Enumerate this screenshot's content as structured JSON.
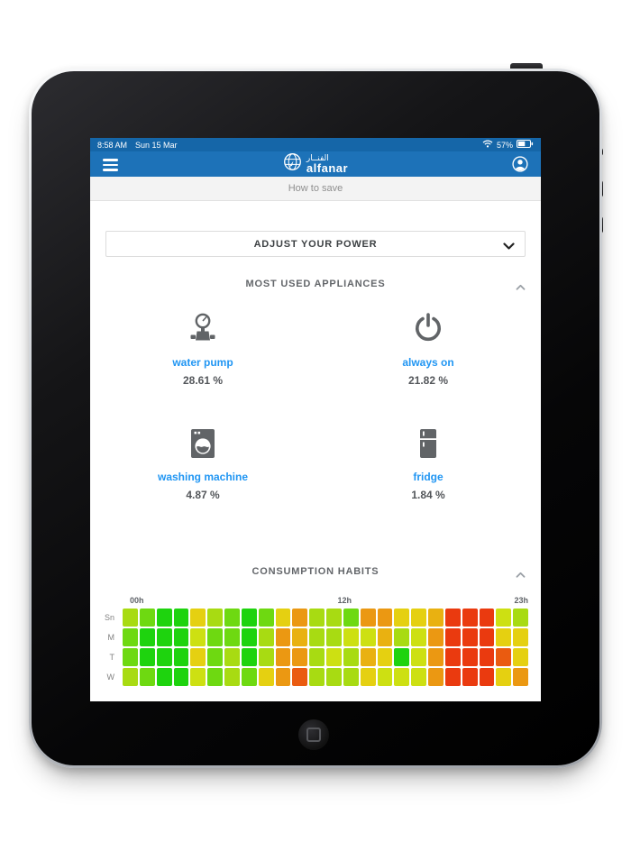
{
  "status_bar": {
    "time": "8:58 AM",
    "date": "Sun 15 Mar",
    "battery": "57%"
  },
  "header": {
    "logo_arabic": "الفنــار",
    "logo_latin": "alfanar"
  },
  "subheader": {
    "title": "How to save"
  },
  "adjust_power": {
    "label": "ADJUST YOUR POWER"
  },
  "sections": {
    "appliances": {
      "title": "MOST USED APPLIANCES",
      "items": [
        {
          "icon": "water-pump-icon",
          "name": "water pump",
          "value": "28.61 %"
        },
        {
          "icon": "power-icon",
          "name": "always on",
          "value": "21.82 %"
        },
        {
          "icon": "washing-machine-icon",
          "name": "washing machine",
          "value": "4.87 %"
        },
        {
          "icon": "fridge-icon",
          "name": "fridge",
          "value": "1.84 %"
        }
      ]
    },
    "habits": {
      "title": "CONSUMPTION HABITS"
    }
  },
  "chart_data": {
    "type": "heatmap",
    "title": "CONSUMPTION HABITS",
    "x_tick_labels": [
      "00h",
      "12h",
      "23h"
    ],
    "hours": 24,
    "rows": [
      "Sn",
      "M",
      "T",
      "W"
    ],
    "palette": {
      "G": "#1ed30e",
      "G2": "#6ed911",
      "YG": "#a8db12",
      "YG2": "#cde012",
      "Y": "#e5d011",
      "OY": "#e9b111",
      "O": "#eb9812",
      "RO": "#ea5b10",
      "R": "#ea3a0f"
    },
    "cells": {
      "Sn": [
        "YG",
        "G2",
        "G",
        "G",
        "Y",
        "YG",
        "G2",
        "G",
        "G2",
        "Y",
        "O",
        "YG",
        "YG",
        "G2",
        "O",
        "O",
        "Y",
        "Y",
        "OY",
        "R",
        "R",
        "R",
        "YG2",
        "YG"
      ],
      "M": [
        "G2",
        "G",
        "G",
        "G",
        "YG2",
        "G2",
        "G2",
        "G",
        "YG",
        "O",
        "OY",
        "YG",
        "YG",
        "YG2",
        "YG2",
        "OY",
        "YG",
        "YG2",
        "O",
        "R",
        "R",
        "R",
        "Y",
        "Y"
      ],
      "T": [
        "G2",
        "G",
        "G",
        "G",
        "Y",
        "G2",
        "YG",
        "G",
        "YG",
        "O",
        "O",
        "YG",
        "YG2",
        "YG",
        "OY",
        "Y",
        "G",
        "YG2",
        "O",
        "R",
        "R",
        "R",
        "RO",
        "Y"
      ],
      "W": [
        "YG",
        "G2",
        "G",
        "G",
        "YG2",
        "G2",
        "YG",
        "G2",
        "Y",
        "O",
        "RO",
        "YG",
        "YG",
        "YG",
        "Y",
        "YG2",
        "YG2",
        "YG2",
        "O",
        "R",
        "R",
        "R",
        "Y",
        "O"
      ]
    }
  },
  "tab_bar": {
    "tabs": [
      {
        "icon": "gauge-icon"
      },
      {
        "icon": "pie-chart-icon"
      },
      {
        "icon": "bar-chart-icon"
      }
    ]
  },
  "colors": {
    "status_blue": "#1566a8",
    "header_blue": "#1d72b8",
    "accent_blue": "#2196f3",
    "icon_gray": "#616467",
    "title_gray": "#63666a",
    "value_gray": "#53565a"
  }
}
